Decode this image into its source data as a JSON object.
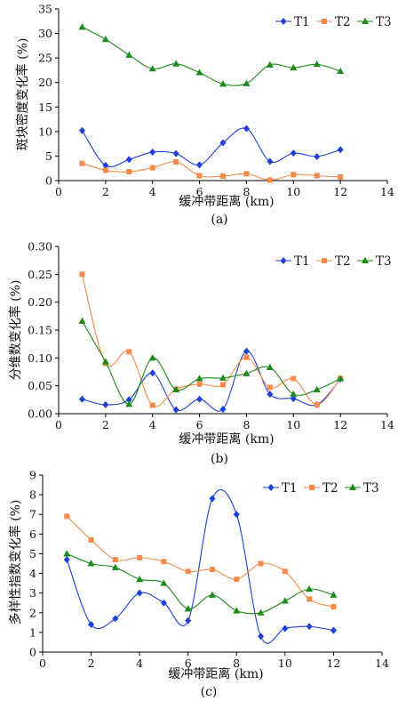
{
  "chart_data": [
    {
      "type": "line",
      "panel_label": "(a)",
      "xlabel": "缓冲带距离 (km)",
      "ylabel": "斑块密度变化率 (%)",
      "xlim": [
        0,
        14
      ],
      "ylim": [
        0,
        35
      ],
      "xticks": [
        "0",
        "2",
        "4",
        "6",
        "8",
        "10",
        "12",
        "14"
      ],
      "yticks": [
        "0",
        "5",
        "10",
        "15",
        "20",
        "25",
        "30",
        "35"
      ],
      "legend_position": "top-right",
      "series": [
        {
          "name": "T1",
          "color": "#1f3fd6",
          "marker": "diamond",
          "x": [
            1,
            2,
            3,
            4,
            5,
            6,
            7,
            8,
            9,
            10,
            11,
            12
          ],
          "values": [
            10.2,
            3.1,
            4.3,
            5.8,
            5.5,
            3.2,
            7.7,
            10.6,
            3.9,
            5.6,
            4.9,
            6.3
          ]
        },
        {
          "name": "T2",
          "color": "#f58a4a",
          "marker": "square",
          "x": [
            1,
            2,
            3,
            4,
            5,
            6,
            7,
            8,
            9,
            10,
            11,
            12
          ],
          "values": [
            3.5,
            2.1,
            1.8,
            2.6,
            3.8,
            1.0,
            0.9,
            1.4,
            0.1,
            1.2,
            1.0,
            0.7
          ]
        },
        {
          "name": "T3",
          "color": "#1a8a1a",
          "marker": "triangle",
          "x": [
            1,
            2,
            3,
            4,
            5,
            6,
            7,
            8,
            9,
            10,
            11,
            12
          ],
          "values": [
            31.3,
            28.8,
            25.6,
            22.8,
            23.8,
            22.0,
            19.7,
            19.8,
            23.6,
            23.0,
            23.7,
            22.3
          ]
        }
      ]
    },
    {
      "type": "line",
      "panel_label": "(b)",
      "xlabel": "缓冲带距离 (km)",
      "ylabel": "分维数变化率 (%)",
      "xlim": [
        0,
        14
      ],
      "ylim": [
        0,
        0.3
      ],
      "xticks": [
        "0",
        "2",
        "4",
        "6",
        "8",
        "10",
        "12",
        "14"
      ],
      "yticks": [
        "0.00",
        "0.05",
        "0.10",
        "0.15",
        "0.20",
        "0.25",
        "0.30"
      ],
      "legend_position": "top-right",
      "series": [
        {
          "name": "T1",
          "color": "#1f3fd6",
          "marker": "diamond",
          "x": [
            1,
            2,
            3,
            4,
            5,
            6,
            7,
            8,
            9,
            10,
            11,
            12
          ],
          "values": [
            0.026,
            0.016,
            0.025,
            0.073,
            0.007,
            0.026,
            0.008,
            0.112,
            0.035,
            0.027,
            0.016,
            0.062
          ]
        },
        {
          "name": "T2",
          "color": "#f58a4a",
          "marker": "square",
          "x": [
            1,
            2,
            3,
            4,
            5,
            6,
            7,
            8,
            9,
            10,
            11,
            12
          ],
          "values": [
            0.25,
            0.09,
            0.111,
            0.015,
            0.044,
            0.053,
            0.052,
            0.101,
            0.047,
            0.063,
            0.016,
            0.063
          ]
        },
        {
          "name": "T3",
          "color": "#1a8a1a",
          "marker": "triangle",
          "x": [
            1,
            2,
            3,
            4,
            5,
            6,
            7,
            8,
            9,
            10,
            11,
            12
          ],
          "values": [
            0.166,
            0.093,
            0.017,
            0.1,
            0.043,
            0.063,
            0.064,
            0.072,
            0.083,
            0.035,
            0.043,
            0.063
          ]
        }
      ]
    },
    {
      "type": "line",
      "panel_label": "(c)",
      "xlabel": "缓冲带距离 (km)",
      "ylabel": "多样性指数变化率 (%)",
      "xlim": [
        0,
        14
      ],
      "ylim": [
        0,
        9
      ],
      "xticks": [
        "0",
        "2",
        "4",
        "6",
        "8",
        "10",
        "12",
        "14"
      ],
      "yticks": [
        "0",
        "1",
        "2",
        "3",
        "4",
        "5",
        "6",
        "7",
        "8",
        "9"
      ],
      "legend_position": "top-right",
      "series": [
        {
          "name": "T1",
          "color": "#1f3fd6",
          "marker": "diamond",
          "x": [
            1,
            2,
            3,
            4,
            5,
            6,
            7,
            8,
            9,
            10,
            11,
            12
          ],
          "values": [
            4.7,
            1.4,
            1.7,
            3.0,
            2.5,
            1.6,
            7.8,
            7.0,
            0.8,
            1.2,
            1.3,
            1.1
          ]
        },
        {
          "name": "T2",
          "color": "#f58a4a",
          "marker": "square",
          "x": [
            1,
            2,
            3,
            4,
            5,
            6,
            7,
            8,
            9,
            10,
            11,
            12
          ],
          "values": [
            6.9,
            5.7,
            4.7,
            4.8,
            4.6,
            4.1,
            4.2,
            3.7,
            4.5,
            4.1,
            2.7,
            2.3
          ]
        },
        {
          "name": "T3",
          "color": "#1a8a1a",
          "marker": "triangle",
          "x": [
            1,
            2,
            3,
            4,
            5,
            6,
            7,
            8,
            9,
            10,
            11,
            12
          ],
          "values": [
            5.0,
            4.5,
            4.3,
            3.7,
            3.5,
            2.2,
            2.9,
            2.1,
            2.0,
            2.6,
            3.2,
            2.9
          ]
        }
      ]
    }
  ]
}
